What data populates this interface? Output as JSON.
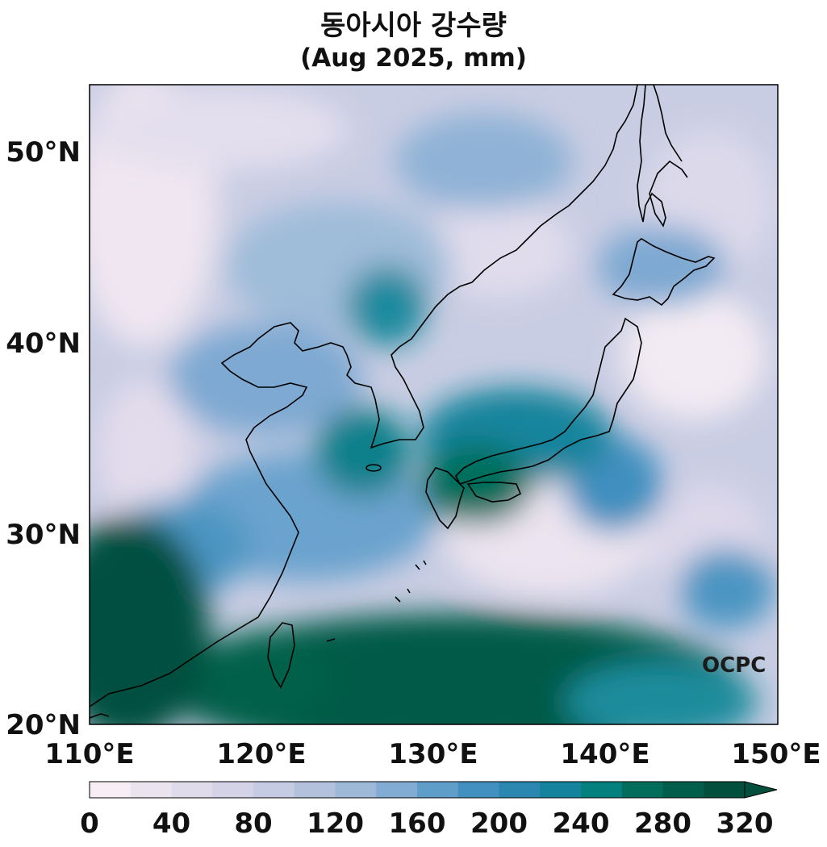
{
  "title": {
    "line1": "동아시아 강수량",
    "line2": "(Aug 2025, mm)"
  },
  "map": {
    "lon_range": [
      110,
      150
    ],
    "lat_range": [
      20,
      53.5
    ],
    "x_ticks": [
      "110°E",
      "120°E",
      "130°E",
      "140°E",
      "150°E"
    ],
    "y_ticks": [
      "20°N",
      "30°N",
      "40°N",
      "50°N"
    ],
    "coastlines": true
  },
  "colorbar": {
    "levels": [
      0,
      20,
      40,
      60,
      80,
      100,
      120,
      140,
      160,
      180,
      200,
      220,
      240,
      260,
      280,
      300,
      320
    ],
    "tick_labels": [
      "0",
      "40",
      "80",
      "120",
      "160",
      "200",
      "240",
      "280",
      "320"
    ],
    "extend": "max",
    "colors": [
      "#f7eef5",
      "#ebe4ee",
      "#dfdbea",
      "#d3d2e6",
      "#c5cbe2",
      "#b3c1dc",
      "#9eb9d8",
      "#82acd3",
      "#5f9ec9",
      "#4190bf",
      "#2b87b0",
      "#13849c",
      "#04807f",
      "#026d5a",
      "#005e4a",
      "#034f3e"
    ]
  },
  "logo": "OCPC"
}
